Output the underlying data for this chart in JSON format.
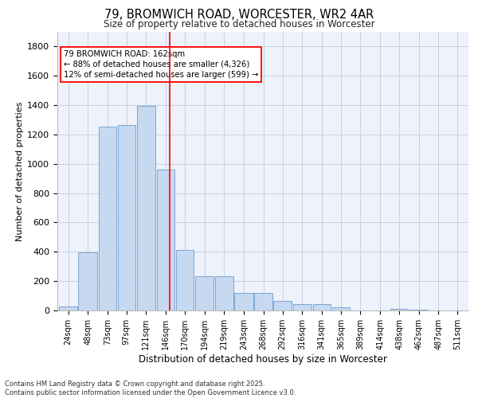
{
  "title": "79, BROMWICH ROAD, WORCESTER, WR2 4AR",
  "subtitle": "Size of property relative to detached houses in Worcester",
  "xlabel": "Distribution of detached houses by size in Worcester",
  "ylabel": "Number of detached properties",
  "bar_labels": [
    "24sqm",
    "48sqm",
    "73sqm",
    "97sqm",
    "121sqm",
    "146sqm",
    "170sqm",
    "194sqm",
    "219sqm",
    "243sqm",
    "268sqm",
    "292sqm",
    "316sqm",
    "341sqm",
    "365sqm",
    "389sqm",
    "414sqm",
    "438sqm",
    "462sqm",
    "487sqm",
    "511sqm"
  ],
  "bar_values": [
    25,
    395,
    1255,
    1265,
    1395,
    960,
    415,
    235,
    235,
    120,
    120,
    65,
    45,
    45,
    20,
    0,
    0,
    10,
    5,
    0,
    0
  ],
  "bar_color": "#c6d9f0",
  "bar_edgecolor": "#7ba7d0",
  "ylim": [
    0,
    1900
  ],
  "yticks": [
    0,
    200,
    400,
    600,
    800,
    1000,
    1200,
    1400,
    1600,
    1800
  ],
  "property_line_x": 162,
  "property_line_color": "red",
  "annotation_text": "79 BROMWICH ROAD: 162sqm\n← 88% of detached houses are smaller (4,326)\n12% of semi-detached houses are larger (599) →",
  "annotation_box_color": "red",
  "footer": "Contains HM Land Registry data © Crown copyright and database right 2025.\nContains public sector information licensed under the Open Government Licence v3.0.",
  "bg_color": "#eef2fb",
  "grid_color": "#c8cfe0",
  "bin_lefts": [
    24,
    48,
    73,
    97,
    121,
    146,
    170,
    194,
    219,
    243,
    268,
    292,
    316,
    341,
    365,
    389,
    414,
    438,
    462,
    487,
    511
  ],
  "bin_widths": [
    23,
    24,
    23,
    23,
    24,
    23,
    23,
    24,
    23,
    24,
    23,
    23,
    24,
    23,
    23,
    24,
    23,
    23,
    24,
    23,
    23
  ]
}
